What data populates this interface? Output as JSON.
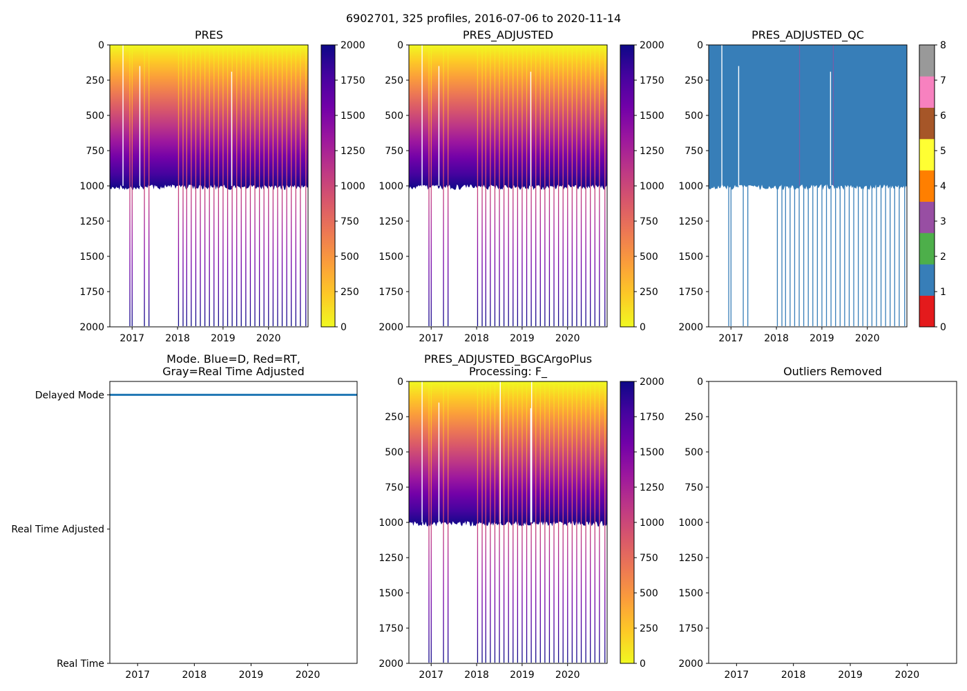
{
  "suptitle": "6902701, 325 profiles, 2016-07-06 to 2020-11-14",
  "colors": {
    "plasma": [
      "#f0f921",
      "#fdca26",
      "#fb9f3a",
      "#ed7953",
      "#d8576b",
      "#bd3786",
      "#9c179e",
      "#7201a8",
      "#46039f",
      "#0d0887"
    ],
    "qc": [
      "#e41a1c",
      "#377eb8",
      "#4daf4a",
      "#984ea3",
      "#ff7f00",
      "#ffff33",
      "#a65628",
      "#f781bf",
      "#999999"
    ],
    "mode_line": "#1f77b4",
    "profile_gap": "#ffffff"
  },
  "chart_data": [
    {
      "id": "pres",
      "type": "heatmap",
      "title": "PRES",
      "xlabel": "",
      "ylabel": "",
      "xlim": [
        2016.51,
        2020.87
      ],
      "ylim": [
        2000,
        0
      ],
      "xticks": [
        "2017",
        "2018",
        "2019",
        "2020"
      ],
      "yticks": [
        "0",
        "250",
        "500",
        "750",
        "1000",
        "1250",
        "1500",
        "1750",
        "2000"
      ],
      "typical_max_depth": 1000,
      "deep_profiles": [
        2016.95,
        2017.0,
        2017.27,
        2017.37,
        2018.02,
        2018.12,
        2018.2,
        2018.3,
        2018.4,
        2018.5,
        2018.6,
        2018.7,
        2018.8,
        2018.9,
        2019.0,
        2019.1,
        2019.2,
        2019.3,
        2019.4,
        2019.5,
        2019.6,
        2019.7,
        2019.8,
        2019.9,
        2020.0,
        2020.1,
        2020.2,
        2020.3,
        2020.4,
        2020.5,
        2020.6,
        2020.7,
        2020.82
      ],
      "gap_profiles": [
        [
          2016.8,
          0
        ],
        [
          2017.17,
          150
        ],
        [
          2019.19,
          190
        ]
      ],
      "colorbar": {
        "cmap": "plasma",
        "range": [
          0,
          2000
        ],
        "ticks": [
          "0",
          "250",
          "500",
          "750",
          "1000",
          "1250",
          "1500",
          "1750",
          "2000"
        ]
      }
    },
    {
      "id": "pres_adjusted",
      "type": "heatmap",
      "title": "PRES_ADJUSTED",
      "xlabel": "",
      "ylabel": "",
      "xlim": [
        2016.51,
        2020.87
      ],
      "ylim": [
        2000,
        0
      ],
      "xticks": [
        "2017",
        "2018",
        "2019",
        "2020"
      ],
      "yticks": [
        "0",
        "250",
        "500",
        "750",
        "1000",
        "1250",
        "1500",
        "1750",
        "2000"
      ],
      "typical_max_depth": 1000,
      "deep_profiles": [
        2016.95,
        2017.0,
        2017.27,
        2017.37,
        2018.02,
        2018.12,
        2018.2,
        2018.3,
        2018.4,
        2018.5,
        2018.6,
        2018.7,
        2018.8,
        2018.9,
        2019.0,
        2019.1,
        2019.2,
        2019.3,
        2019.4,
        2019.5,
        2019.6,
        2019.7,
        2019.8,
        2019.9,
        2020.0,
        2020.1,
        2020.2,
        2020.3,
        2020.4,
        2020.5,
        2020.6,
        2020.7,
        2020.82
      ],
      "gap_profiles": [
        [
          2016.8,
          0
        ],
        [
          2017.17,
          150
        ],
        [
          2019.19,
          190
        ]
      ],
      "colorbar": {
        "cmap": "plasma",
        "range": [
          0,
          2000
        ],
        "ticks": [
          "0",
          "250",
          "500",
          "750",
          "1000",
          "1250",
          "1500",
          "1750",
          "2000"
        ]
      }
    },
    {
      "id": "pres_adjusted_qc",
      "type": "heatmap",
      "title": "PRES_ADJUSTED_QC",
      "xlabel": "",
      "ylabel": "",
      "xlim": [
        2016.51,
        2020.87
      ],
      "ylim": [
        2000,
        0
      ],
      "xticks": [
        "2017",
        "2018",
        "2019",
        "2020"
      ],
      "yticks": [
        "0",
        "250",
        "500",
        "750",
        "1000",
        "1250",
        "1500",
        "1750",
        "2000"
      ],
      "typical_max_depth": 1000,
      "qc_value": 1,
      "qc_flag3_profiles": [
        2018.51,
        2019.25
      ],
      "deep_profiles": [
        2016.95,
        2017.0,
        2017.27,
        2017.37,
        2018.02,
        2018.12,
        2018.2,
        2018.3,
        2018.4,
        2018.5,
        2018.6,
        2018.7,
        2018.8,
        2018.9,
        2019.0,
        2019.1,
        2019.2,
        2019.3,
        2019.4,
        2019.5,
        2019.6,
        2019.7,
        2019.8,
        2019.9,
        2020.0,
        2020.1,
        2020.2,
        2020.3,
        2020.4,
        2020.5,
        2020.6,
        2020.7,
        2020.82
      ],
      "gap_profiles": [
        [
          2016.8,
          0
        ],
        [
          2017.17,
          150
        ],
        [
          2019.19,
          190
        ]
      ],
      "colorbar": {
        "cmap": "qc",
        "range": [
          0,
          8
        ],
        "ticks": [
          "0",
          "1",
          "2",
          "3",
          "4",
          "5",
          "6",
          "7",
          "8"
        ]
      }
    },
    {
      "id": "mode",
      "type": "line",
      "title": "Mode. Blue=D, Red=RT,\nGray=Real Time Adjusted",
      "xlabel": "",
      "ylabel": "",
      "xlim": [
        2016.51,
        2020.87
      ],
      "ylim": [
        0,
        2.1
      ],
      "xticks": [
        "2017",
        "2018",
        "2019",
        "2020"
      ],
      "ycategories": [
        "Real Time",
        "Real Time Adjusted",
        "Delayed Mode"
      ],
      "series": [
        {
          "name": "Delayed Mode",
          "x": [
            2016.51,
            2020.87
          ],
          "values": [
            2,
            2
          ]
        }
      ]
    },
    {
      "id": "bgc_plus",
      "type": "heatmap",
      "title": "PRES_ADJUSTED_BGCArgoPlus\nProcessing: F_",
      "xlabel": "",
      "ylabel": "",
      "xlim": [
        2016.51,
        2020.87
      ],
      "ylim": [
        2000,
        0
      ],
      "xticks": [
        "2017",
        "2018",
        "2019",
        "2020"
      ],
      "yticks": [
        "0",
        "250",
        "500",
        "750",
        "1000",
        "1250",
        "1500",
        "1750",
        "2000"
      ],
      "typical_max_depth": 1000,
      "deep_profiles": [
        2016.95,
        2017.0,
        2017.27,
        2017.37,
        2018.02,
        2018.12,
        2018.2,
        2018.3,
        2018.4,
        2018.5,
        2018.6,
        2018.7,
        2018.8,
        2018.9,
        2019.0,
        2019.1,
        2019.2,
        2019.3,
        2019.4,
        2019.5,
        2019.6,
        2019.7,
        2019.8,
        2019.9,
        2020.0,
        2020.1,
        2020.2,
        2020.3,
        2020.4,
        2020.5,
        2020.6,
        2020.7,
        2020.82
      ],
      "gap_profiles": [
        [
          2016.8,
          0
        ],
        [
          2017.17,
          150
        ],
        [
          2018.52,
          0
        ],
        [
          2019.19,
          190
        ],
        [
          2019.21,
          0
        ]
      ],
      "colorbar": {
        "cmap": "plasma",
        "range": [
          0,
          2000
        ],
        "ticks": [
          "0",
          "250",
          "500",
          "750",
          "1000",
          "1250",
          "1500",
          "1750",
          "2000"
        ]
      }
    },
    {
      "id": "outliers",
      "type": "scatter",
      "title": "Outliers Removed",
      "xlabel": "",
      "ylabel": "",
      "xlim": [
        2016.51,
        2020.87
      ],
      "ylim": [
        2000,
        0
      ],
      "xticks": [
        "2017",
        "2018",
        "2019",
        "2020"
      ],
      "yticks": [
        "0",
        "250",
        "500",
        "750",
        "1000",
        "1250",
        "1500",
        "1750",
        "2000"
      ],
      "points": []
    }
  ]
}
